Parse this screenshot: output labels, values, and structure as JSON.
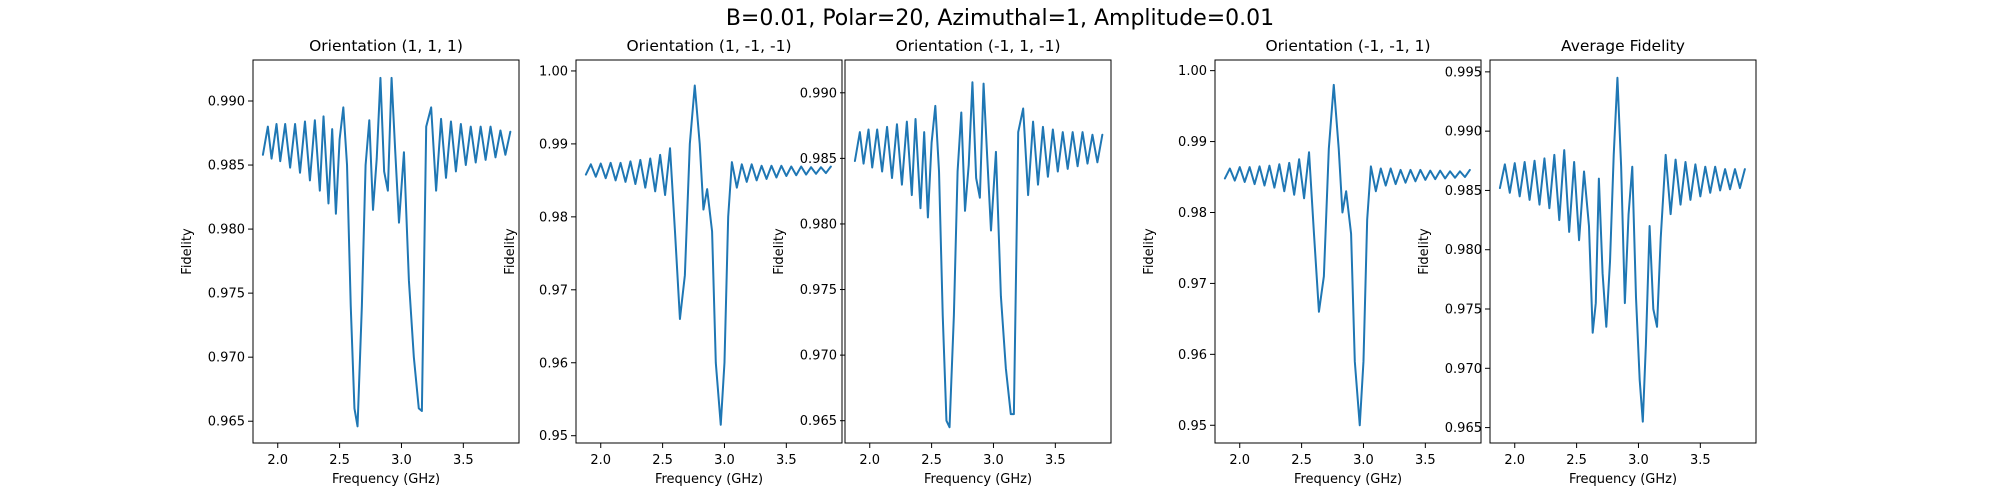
{
  "figure_title": "B=0.01, Polar=20, Azimuthal=1, Amplitude=0.01",
  "colors": {
    "line": "#1f77b4",
    "axes": "#000000",
    "background": "#ffffff"
  },
  "chart_data": [
    {
      "type": "line",
      "title": "Orientation (1, 1, 1)",
      "xlabel": "Frequency (GHz)",
      "ylabel": "Fidelity",
      "xlim": [
        1.8,
        3.95
      ],
      "ylim": [
        0.9633,
        0.9932
      ],
      "xticks": [
        2.0,
        2.5,
        3.0,
        3.5
      ],
      "xtick_labels": [
        "2.0",
        "2.5",
        "3.0",
        "3.5"
      ],
      "yticks": [
        0.965,
        0.97,
        0.975,
        0.98,
        0.985,
        0.99
      ],
      "ytick_labels": [
        "0.965",
        "0.970",
        "0.975",
        "0.980",
        "0.985",
        "0.990"
      ],
      "grid": false,
      "series": [
        {
          "x": [
            1.88,
            1.92,
            1.95,
            1.99,
            2.02,
            2.06,
            2.1,
            2.14,
            2.18,
            2.22,
            2.26,
            2.3,
            2.34,
            2.37,
            2.41,
            2.44,
            2.47,
            2.5,
            2.53,
            2.56,
            2.59,
            2.62,
            2.645,
            2.68,
            2.71,
            2.74,
            2.77,
            2.8,
            2.83,
            2.86,
            2.89,
            2.92,
            2.95,
            2.98,
            3.02,
            3.06,
            3.1,
            3.14,
            3.165,
            3.2,
            3.24,
            3.28,
            3.32,
            3.36,
            3.4,
            3.44,
            3.48,
            3.52,
            3.56,
            3.6,
            3.64,
            3.68,
            3.72,
            3.76,
            3.8,
            3.84,
            3.88
          ],
          "y": [
            0.9858,
            0.988,
            0.9855,
            0.9882,
            0.9853,
            0.9882,
            0.9848,
            0.9882,
            0.9844,
            0.9884,
            0.9838,
            0.9885,
            0.983,
            0.9888,
            0.982,
            0.9878,
            0.9812,
            0.987,
            0.9895,
            0.985,
            0.974,
            0.966,
            0.9646,
            0.974,
            0.985,
            0.9885,
            0.9815,
            0.9855,
            0.9918,
            0.9845,
            0.983,
            0.9918,
            0.986,
            0.9805,
            0.986,
            0.976,
            0.97,
            0.966,
            0.9658,
            0.988,
            0.9895,
            0.983,
            0.9886,
            0.984,
            0.9884,
            0.9845,
            0.9882,
            0.985,
            0.988,
            0.9852,
            0.988,
            0.9854,
            0.988,
            0.9856,
            0.9877,
            0.9858,
            0.9876
          ]
        }
      ]
    },
    {
      "type": "line",
      "title": "Orientation (1, -1, -1)",
      "xlabel": "Frequency (GHz)",
      "ylabel": "Fidelity",
      "xlim": [
        1.8,
        3.95
      ],
      "ylim": [
        0.949,
        1.0015
      ],
      "xticks": [
        2.0,
        2.5,
        3.0,
        3.5
      ],
      "xtick_labels": [
        "2.0",
        "2.5",
        "3.0",
        "3.5"
      ],
      "yticks": [
        0.95,
        0.96,
        0.97,
        0.98,
        0.99,
        1.0
      ],
      "ytick_labels": [
        "0.95",
        "0.96",
        "0.97",
        "0.98",
        "0.99",
        "1.00"
      ],
      "grid": false,
      "series": [
        {
          "x": [
            1.88,
            1.92,
            1.96,
            2.0,
            2.04,
            2.08,
            2.12,
            2.16,
            2.2,
            2.24,
            2.28,
            2.32,
            2.36,
            2.4,
            2.44,
            2.48,
            2.52,
            2.56,
            2.6,
            2.64,
            2.68,
            2.72,
            2.76,
            2.8,
            2.83,
            2.86,
            2.9,
            2.93,
            2.97,
            3.0,
            3.03,
            3.06,
            3.1,
            3.14,
            3.18,
            3.22,
            3.26,
            3.3,
            3.34,
            3.38,
            3.42,
            3.46,
            3.5,
            3.54,
            3.58,
            3.62,
            3.66,
            3.7,
            3.74,
            3.78,
            3.82,
            3.86
          ],
          "y": [
            0.9858,
            0.9872,
            0.9855,
            0.9873,
            0.9853,
            0.9874,
            0.985,
            0.9874,
            0.9848,
            0.9876,
            0.9845,
            0.9878,
            0.984,
            0.988,
            0.9835,
            0.9885,
            0.983,
            0.9894,
            0.978,
            0.966,
            0.972,
            0.99,
            0.998,
            0.99,
            0.981,
            0.9838,
            0.978,
            0.96,
            0.9515,
            0.96,
            0.98,
            0.9875,
            0.984,
            0.9872,
            0.9848,
            0.9872,
            0.985,
            0.987,
            0.9852,
            0.987,
            0.9854,
            0.987,
            0.9856,
            0.9869,
            0.9857,
            0.9869,
            0.9858,
            0.9868,
            0.9859,
            0.9868,
            0.986,
            0.9869
          ]
        }
      ]
    },
    {
      "type": "line",
      "title": "Orientation (-1, 1, -1)",
      "xlabel": "Frequency (GHz)",
      "ylabel": "Fidelity",
      "xlim": [
        1.8,
        3.95
      ],
      "ylim": [
        0.9633,
        0.9925
      ],
      "xticks": [
        2.0,
        2.5,
        3.0,
        3.5
      ],
      "xtick_labels": [
        "2.0",
        "2.5",
        "3.0",
        "3.5"
      ],
      "yticks": [
        0.965,
        0.97,
        0.975,
        0.98,
        0.985,
        0.99
      ],
      "ytick_labels": [
        "0.965",
        "0.970",
        "0.975",
        "0.980",
        "0.985",
        "0.990"
      ],
      "grid": false,
      "series": [
        {
          "x": [
            1.88,
            1.92,
            1.95,
            1.99,
            2.02,
            2.06,
            2.1,
            2.14,
            2.18,
            2.22,
            2.26,
            2.3,
            2.34,
            2.37,
            2.41,
            2.44,
            2.47,
            2.5,
            2.53,
            2.56,
            2.59,
            2.62,
            2.645,
            2.68,
            2.71,
            2.74,
            2.77,
            2.8,
            2.83,
            2.86,
            2.89,
            2.92,
            2.95,
            2.98,
            3.02,
            3.06,
            3.1,
            3.14,
            3.165,
            3.2,
            3.24,
            3.28,
            3.32,
            3.36,
            3.4,
            3.44,
            3.48,
            3.52,
            3.56,
            3.6,
            3.64,
            3.68,
            3.72,
            3.76,
            3.8,
            3.84,
            3.88
          ],
          "y": [
            0.9848,
            0.987,
            0.9846,
            0.9872,
            0.9843,
            0.9872,
            0.984,
            0.9874,
            0.9835,
            0.9876,
            0.983,
            0.9878,
            0.9822,
            0.988,
            0.9812,
            0.987,
            0.9805,
            0.9862,
            0.989,
            0.984,
            0.973,
            0.965,
            0.9645,
            0.973,
            0.984,
            0.9885,
            0.981,
            0.9845,
            0.9908,
            0.9835,
            0.982,
            0.9907,
            0.985,
            0.9795,
            0.9855,
            0.9745,
            0.969,
            0.9655,
            0.9655,
            0.987,
            0.9888,
            0.9822,
            0.9878,
            0.983,
            0.9874,
            0.9836,
            0.9872,
            0.984,
            0.987,
            0.9842,
            0.987,
            0.9844,
            0.987,
            0.9846,
            0.9868,
            0.9847,
            0.9868
          ]
        }
      ]
    },
    {
      "type": "line",
      "title": "Orientation (-1, -1, 1)",
      "xlabel": "Frequency (GHz)",
      "ylabel": "Fidelity",
      "xlim": [
        1.8,
        3.95
      ],
      "ylim": [
        0.9475,
        1.0015
      ],
      "xticks": [
        2.0,
        2.5,
        3.0,
        3.5
      ],
      "xtick_labels": [
        "2.0",
        "2.5",
        "3.0",
        "3.5"
      ],
      "yticks": [
        0.95,
        0.96,
        0.97,
        0.98,
        0.99,
        1.0
      ],
      "ytick_labels": [
        "0.95",
        "0.96",
        "0.97",
        "0.98",
        "0.99",
        "1.00"
      ],
      "grid": false,
      "series": [
        {
          "x": [
            1.88,
            1.92,
            1.96,
            2.0,
            2.04,
            2.08,
            2.12,
            2.16,
            2.2,
            2.24,
            2.28,
            2.32,
            2.36,
            2.4,
            2.44,
            2.48,
            2.52,
            2.56,
            2.6,
            2.64,
            2.68,
            2.72,
            2.76,
            2.8,
            2.83,
            2.86,
            2.9,
            2.93,
            2.97,
            3.0,
            3.03,
            3.06,
            3.1,
            3.14,
            3.18,
            3.22,
            3.26,
            3.3,
            3.34,
            3.38,
            3.42,
            3.46,
            3.5,
            3.54,
            3.58,
            3.62,
            3.66,
            3.7,
            3.74,
            3.78,
            3.82,
            3.86
          ],
          "y": [
            0.9848,
            0.9862,
            0.9845,
            0.9864,
            0.9843,
            0.9864,
            0.984,
            0.9865,
            0.9838,
            0.9866,
            0.9835,
            0.9868,
            0.983,
            0.987,
            0.9825,
            0.9875,
            0.982,
            0.9885,
            0.977,
            0.966,
            0.971,
            0.989,
            0.998,
            0.989,
            0.98,
            0.983,
            0.977,
            0.959,
            0.95,
            0.959,
            0.979,
            0.9865,
            0.983,
            0.9862,
            0.9838,
            0.9862,
            0.984,
            0.986,
            0.9842,
            0.986,
            0.9844,
            0.986,
            0.9846,
            0.9859,
            0.9847,
            0.9859,
            0.9848,
            0.9858,
            0.9849,
            0.9858,
            0.985,
            0.986
          ]
        }
      ]
    },
    {
      "type": "line",
      "title": "Average Fidelity",
      "xlabel": "Frequency (GHz)",
      "ylabel": "Fidelity",
      "xlim": [
        1.8,
        3.95
      ],
      "ylim": [
        0.9637,
        0.996
      ],
      "xticks": [
        2.0,
        2.5,
        3.0,
        3.5
      ],
      "xtick_labels": [
        "2.0",
        "2.5",
        "3.0",
        "3.5"
      ],
      "yticks": [
        0.965,
        0.97,
        0.975,
        0.98,
        0.985,
        0.99,
        0.995
      ],
      "ytick_labels": [
        "0.965",
        "0.970",
        "0.975",
        "0.980",
        "0.985",
        "0.990",
        "0.995"
      ],
      "grid": false,
      "series": [
        {
          "x": [
            1.88,
            1.92,
            1.96,
            2.0,
            2.04,
            2.08,
            2.12,
            2.16,
            2.2,
            2.24,
            2.28,
            2.32,
            2.36,
            2.4,
            2.44,
            2.48,
            2.52,
            2.56,
            2.6,
            2.63,
            2.655,
            2.68,
            2.71,
            2.74,
            2.77,
            2.8,
            2.83,
            2.86,
            2.89,
            2.92,
            2.95,
            2.98,
            3.01,
            3.035,
            3.06,
            3.09,
            3.12,
            3.15,
            3.18,
            3.22,
            3.26,
            3.3,
            3.34,
            3.38,
            3.42,
            3.46,
            3.5,
            3.54,
            3.58,
            3.62,
            3.66,
            3.7,
            3.74,
            3.78,
            3.82,
            3.86
          ],
          "y": [
            0.9852,
            0.9872,
            0.9848,
            0.9873,
            0.9845,
            0.9874,
            0.9842,
            0.9875,
            0.9838,
            0.9877,
            0.9835,
            0.988,
            0.9825,
            0.9884,
            0.9815,
            0.9874,
            0.9808,
            0.9866,
            0.982,
            0.973,
            0.9755,
            0.986,
            0.978,
            0.9735,
            0.979,
            0.988,
            0.9945,
            0.987,
            0.9755,
            0.983,
            0.987,
            0.976,
            0.969,
            0.9655,
            0.972,
            0.982,
            0.975,
            0.9735,
            0.981,
            0.988,
            0.983,
            0.9876,
            0.9838,
            0.9874,
            0.9842,
            0.9872,
            0.9845,
            0.987,
            0.9848,
            0.987,
            0.985,
            0.9868,
            0.9851,
            0.9868,
            0.9852,
            0.9868
          ]
        }
      ]
    }
  ]
}
